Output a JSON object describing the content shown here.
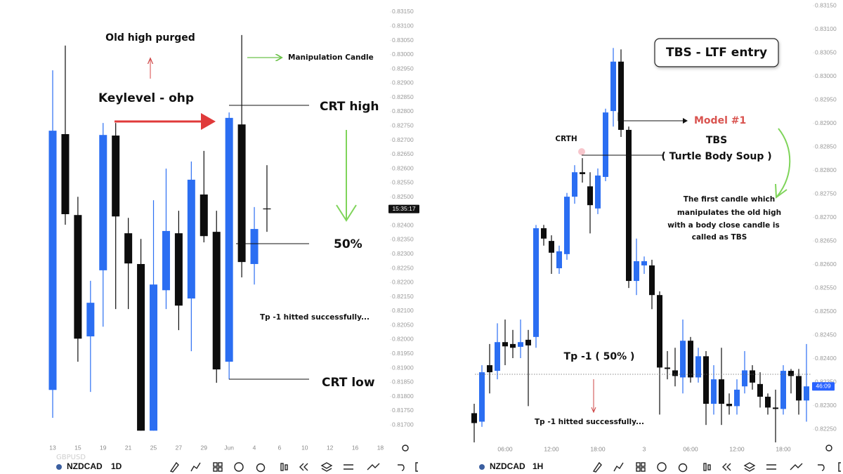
{
  "chart_data": [
    {
      "type": "candlestick",
      "categories": [
        "13",
        null,
        "15",
        null,
        "19",
        null,
        "21",
        null,
        "25",
        null,
        "27",
        null,
        "29",
        null,
        "Jun",
        null,
        "4",
        null,
        "6",
        null,
        "10",
        null,
        "12",
        null,
        "16",
        null,
        "18"
      ],
      "open": [
        0.81823,
        0.82721,
        0.82437,
        0.82011,
        0.82243,
        0.82716,
        0.82373,
        0.82265,
        0.8168,
        0.82173,
        0.82373,
        0.82144,
        0.82509,
        0.82378,
        0.81922,
        0.82755,
        0.82265,
        0.8246,
        null,
        null,
        null,
        null,
        null,
        null,
        null,
        null,
        null
      ],
      "high": [
        0.82945,
        0.83032,
        0.82501,
        0.82206,
        0.8276,
        0.8276,
        0.82427,
        0.82353,
        0.82489,
        0.826,
        0.82452,
        0.82625,
        0.82662,
        0.82452,
        0.82797,
        0.83069,
        0.82465,
        0.82612,
        null,
        null,
        null,
        null,
        null,
        null,
        null,
        null,
        null
      ],
      "low": [
        0.81725,
        0.82403,
        0.81922,
        0.81816,
        0.82045,
        0.82107,
        0.82107,
        0.8168,
        0.8168,
        0.82107,
        0.82033,
        0.81959,
        0.82341,
        0.81848,
        0.8186,
        0.82218,
        0.82193,
        0.82378,
        null,
        null,
        null,
        null,
        null,
        null,
        null,
        null,
        null
      ],
      "close": [
        0.82733,
        0.8244,
        0.82003,
        0.82129,
        0.82718,
        0.82432,
        0.82267,
        0.8168,
        0.82193,
        0.82381,
        0.82119,
        0.82561,
        0.82363,
        0.81895,
        0.82778,
        0.82272,
        0.82388,
        0.82458,
        null,
        null,
        null,
        null,
        null,
        null,
        null,
        null,
        null
      ],
      "up_color": "#2b6ef2",
      "down_color": "#0d0d0d",
      "ylim": [
        0.8166,
        0.8318
      ],
      "yticks": [
        {
          "value": 0.8315,
          "label": "0.83150"
        },
        {
          "value": 0.831,
          "label": "0.83100"
        },
        {
          "value": 0.8305,
          "label": "0.83050"
        },
        {
          "value": 0.83,
          "label": "0.83000"
        },
        {
          "value": 0.8295,
          "label": "0.82950"
        },
        {
          "value": 0.829,
          "label": "0.82900"
        },
        {
          "value": 0.8285,
          "label": "0.82850"
        },
        {
          "value": 0.828,
          "label": "0.82800"
        },
        {
          "value": 0.8275,
          "label": "0.82750"
        },
        {
          "value": 0.827,
          "label": "0.82700"
        },
        {
          "value": 0.8265,
          "label": "0.82650"
        },
        {
          "value": 0.826,
          "label": "0.82600"
        },
        {
          "value": 0.8255,
          "label": "0.82550"
        },
        {
          "value": 0.825,
          "label": "0.82500"
        },
        {
          "value": 0.8245,
          "label": "0.82450"
        },
        {
          "value": 0.824,
          "label": "0.82400"
        },
        {
          "value": 0.8235,
          "label": "0.82350"
        },
        {
          "value": 0.823,
          "label": "0.82300"
        },
        {
          "value": 0.8225,
          "label": "0.82250"
        },
        {
          "value": 0.822,
          "label": "0.82200"
        },
        {
          "value": 0.8215,
          "label": "0.82150"
        },
        {
          "value": 0.821,
          "label": "0.82100"
        },
        {
          "value": 0.8205,
          "label": "0.82050"
        },
        {
          "value": 0.82,
          "label": "0.82000"
        },
        {
          "value": 0.8195,
          "label": "0.81950"
        },
        {
          "value": 0.819,
          "label": "0.81900"
        },
        {
          "value": 0.8185,
          "label": "0.81850"
        },
        {
          "value": 0.818,
          "label": "0.81800"
        },
        {
          "value": 0.8175,
          "label": "0.81750"
        },
        {
          "value": 0.817,
          "label": "0.81700"
        }
      ],
      "countdown": "15:35:17",
      "annotations": [
        "Old high purged",
        "Keylevel - ohp",
        "Manipulation Candle",
        "CRT high",
        "50%",
        "Tp -1 hitted successfully...",
        "CRT low"
      ]
    },
    {
      "type": "candlestick",
      "categories": [
        null,
        null,
        null,
        null,
        "06:00",
        null,
        null,
        null,
        null,
        null,
        "12:00",
        null,
        null,
        null,
        null,
        null,
        "18:00",
        null,
        null,
        null,
        null,
        null,
        "3",
        null,
        null,
        null,
        null,
        null,
        "06:00",
        null,
        null,
        null,
        null,
        null,
        "12:00",
        null,
        null,
        null,
        null,
        null,
        "18:00",
        null,
        null,
        null
      ],
      "open": [
        0.82284,
        0.82266,
        0.82386,
        0.82374,
        0.82435,
        0.82431,
        0.82425,
        0.8244,
        0.82446,
        0.82677,
        0.8265,
        0.82592,
        0.82622,
        0.82744,
        0.82796,
        0.82766,
        0.82719,
        0.82786,
        0.82926,
        0.83031,
        0.82886,
        0.82565,
        0.82598,
        0.82598,
        0.82535,
        0.82381,
        0.82375,
        0.8236,
        0.82438,
        0.8236,
        0.82405,
        0.82304,
        0.82356,
        0.82304,
        0.82299,
        0.82341,
        0.82375,
        0.82346,
        0.82319,
        0.82296,
        0.82293,
        0.82374,
        0.82363,
        0.82311
      ],
      "high": [
        0.82304,
        0.82386,
        0.82431,
        0.82475,
        0.82483,
        0.82461,
        0.82483,
        0.82461,
        0.82684,
        0.82684,
        0.82662,
        0.8264,
        0.82752,
        0.82811,
        0.82826,
        0.82796,
        0.82804,
        0.82931,
        0.8306,
        0.83057,
        0.82893,
        0.82655,
        0.82617,
        0.8261,
        0.82543,
        0.82416,
        0.82423,
        0.82483,
        0.82446,
        0.82423,
        0.82416,
        0.82386,
        0.82423,
        0.82326,
        0.82356,
        0.82416,
        0.82386,
        0.82371,
        0.82326,
        0.82334,
        0.82386,
        0.82378,
        0.82378,
        0.82431
      ],
      "low": [
        0.82222,
        0.82255,
        0.82326,
        0.82356,
        0.82386,
        0.82401,
        0.82401,
        0.82299,
        0.82423,
        0.8264,
        0.8258,
        0.8258,
        0.8261,
        0.82729,
        0.82774,
        0.82666,
        0.82707,
        0.82777,
        0.82893,
        0.82871,
        0.8255,
        0.82535,
        0.8258,
        0.82505,
        0.82281,
        0.82356,
        0.82341,
        0.82326,
        0.82349,
        0.82349,
        0.82259,
        0.82281,
        0.82259,
        0.82281,
        0.82281,
        0.82326,
        0.82334,
        0.82296,
        0.82281,
        0.82222,
        0.82281,
        0.82326,
        0.82281,
        0.82266
      ],
      "close": [
        0.82263,
        0.82371,
        0.82371,
        0.82435,
        0.82426,
        0.82423,
        0.82435,
        0.82428,
        0.82677,
        0.82655,
        0.82625,
        0.82628,
        0.82744,
        0.82796,
        0.82792,
        0.82726,
        0.82789,
        0.82923,
        0.83031,
        0.82886,
        0.82565,
        0.82607,
        0.82607,
        0.82535,
        0.82381,
        0.82378,
        0.82363,
        0.82438,
        0.8236,
        0.82405,
        0.82304,
        0.82356,
        0.82304,
        0.82299,
        0.82334,
        0.82375,
        0.82349,
        0.82319,
        0.82296,
        0.82293,
        0.82374,
        0.82363,
        0.82311,
        0.82341
      ],
      "up_color": "#2b6ef2",
      "down_color": "#0d0d0d",
      "ylim": [
        0.8222,
        0.8316
      ],
      "yticks": [
        {
          "value": 0.8315,
          "label": "0.83150"
        },
        {
          "value": 0.831,
          "label": "0.83100"
        },
        {
          "value": 0.8305,
          "label": "0.83050"
        },
        {
          "value": 0.83,
          "label": "0.83000"
        },
        {
          "value": 0.8295,
          "label": "0.82950"
        },
        {
          "value": 0.829,
          "label": "0.82900"
        },
        {
          "value": 0.8285,
          "label": "0.82850"
        },
        {
          "value": 0.828,
          "label": "0.82800"
        },
        {
          "value": 0.8275,
          "label": "0.82750"
        },
        {
          "value": 0.827,
          "label": "0.82700"
        },
        {
          "value": 0.8265,
          "label": "0.82650"
        },
        {
          "value": 0.826,
          "label": "0.82600"
        },
        {
          "value": 0.8255,
          "label": "0.82550"
        },
        {
          "value": 0.825,
          "label": "0.82500"
        },
        {
          "value": 0.8245,
          "label": "0.82450"
        },
        {
          "value": 0.824,
          "label": "0.82400"
        },
        {
          "value": 0.8235,
          "label": "0.82350"
        },
        {
          "value": 0.823,
          "label": "0.82300"
        },
        {
          "value": 0.8225,
          "label": "0.82250"
        }
      ],
      "countdown": "46:09",
      "box_title": "TBS - LTF entry",
      "annotations": [
        "Model #1",
        "TBS",
        "( Turtle Body Soup )",
        "CRTH",
        "The first candle which",
        "manipulates the old high",
        "with a body close candle is",
        "called as TBS",
        "Tp -1 ( 50% )",
        "Tp -1 hitted successfully..."
      ]
    }
  ],
  "watermark": "GBPUSD",
  "toolbars": [
    {
      "symbol": "NZDCAD",
      "interval": "1D"
    },
    {
      "symbol": "NZDCAD",
      "interval": "1H"
    }
  ]
}
